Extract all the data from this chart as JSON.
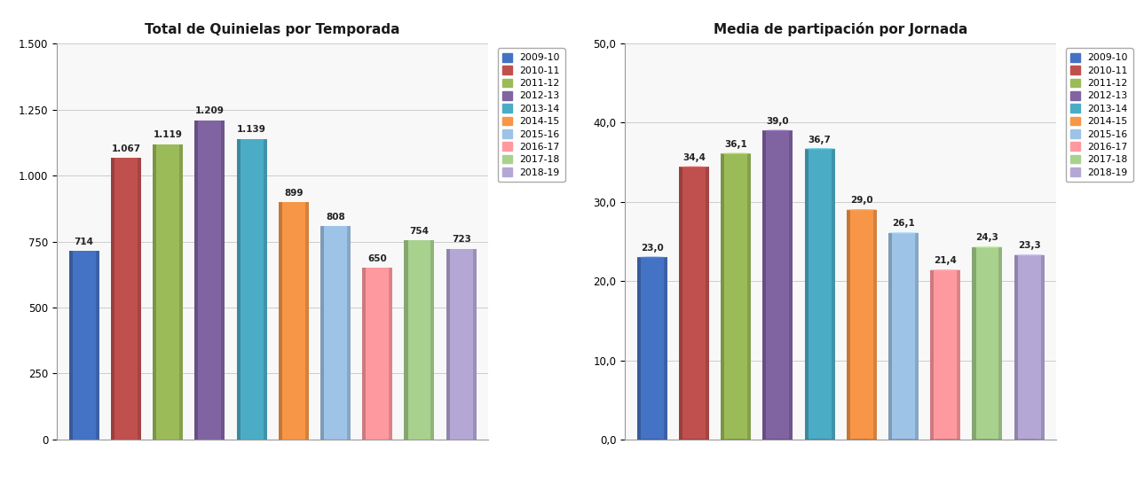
{
  "chart1": {
    "title": "Total de Quinielas por Temporada",
    "seasons": [
      "2009-10",
      "2010-11",
      "2011-12",
      "2012-13",
      "2013-14",
      "2014-15",
      "2015-16",
      "2016-17",
      "2017-18",
      "2018-19"
    ],
    "values": [
      714,
      1067,
      1119,
      1209,
      1139,
      899,
      808,
      650,
      754,
      723
    ],
    "colors": [
      "#4472C4",
      "#C0504D",
      "#9BBB59",
      "#8064A2",
      "#4BACC6",
      "#F79646",
      "#9DC3E6",
      "#FF99A0",
      "#A9D18E",
      "#B4A7D6"
    ],
    "ylim": [
      0,
      1500
    ],
    "yticks": [
      0,
      250,
      500,
      750,
      1000,
      1250,
      1500
    ],
    "ytick_labels": [
      "0",
      "250",
      "500",
      "750",
      "1.000",
      "1.250",
      "1.500"
    ],
    "bar_labels": [
      "714",
      "1.067",
      "1.119",
      "1.209",
      "1.139",
      "899",
      "808",
      "650",
      "754",
      "723"
    ]
  },
  "chart2": {
    "title": "Media de partipación por Jornada",
    "seasons": [
      "2009-10",
      "2010-11",
      "2011-12",
      "2012-13",
      "2013-14",
      "2014-15",
      "2015-16",
      "2016-17",
      "2017-18",
      "2018-19"
    ],
    "values": [
      23.0,
      34.4,
      36.1,
      39.0,
      36.7,
      29.0,
      26.1,
      21.4,
      24.3,
      23.3
    ],
    "colors": [
      "#4472C4",
      "#C0504D",
      "#9BBB59",
      "#8064A2",
      "#4BACC6",
      "#F79646",
      "#9DC3E6",
      "#FF99A0",
      "#A9D18E",
      "#B4A7D6"
    ],
    "ylim": [
      0,
      50
    ],
    "yticks": [
      0,
      10,
      20,
      30,
      40,
      50
    ],
    "ytick_labels": [
      "0,0",
      "10,0",
      "20,0",
      "30,0",
      "40,0",
      "50,0"
    ],
    "bar_labels": [
      "23,0",
      "34,4",
      "36,1",
      "39,0",
      "36,7",
      "29,0",
      "26,1",
      "21,4",
      "24,3",
      "23,3"
    ]
  },
  "background_color": "#FFFFFF",
  "grid_color": "#CCCCCC",
  "pane_color": "#F8F8F8"
}
